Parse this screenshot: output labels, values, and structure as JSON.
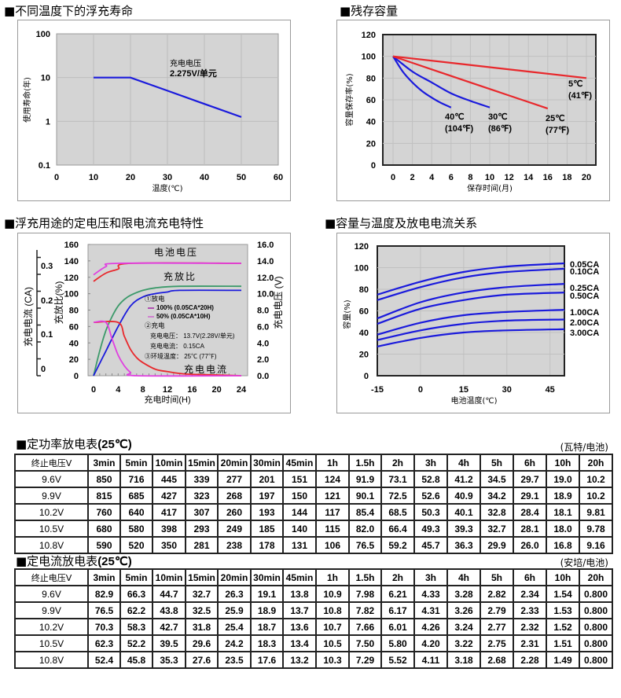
{
  "sections": {
    "float_life_title": "■不同温度下的浮充寿命",
    "residual_title": "■残存容量",
    "charge_title": "■浮充用途的定电压和限电流充电特性",
    "capacity_temp_title": "■容量与温度及放电电流关系",
    "cp_table_title": "■定功率放电表",
    "cp_table_temp": "(25℃)",
    "cc_table_title": "■定电流放电表",
    "cc_table_temp": "(25℃)"
  },
  "chart_data": [
    {
      "type": "line",
      "title": "不同温度下的浮充寿命",
      "xlabel": "温度(℃)",
      "ylabel": "使用寿命(年)",
      "xlim": [
        0,
        60
      ],
      "ylim": [
        0.1,
        100
      ],
      "yscale": "log",
      "xticks": [
        "0",
        "10",
        "20",
        "30",
        "40",
        "50",
        "60"
      ],
      "yticks": [
        "0.1",
        "1",
        "10",
        "100"
      ],
      "grid": true,
      "annotation": [
        "充电电压",
        "2.275V/单元"
      ],
      "series": [
        {
          "name": "2.275V/单元",
          "color": "#1a1adc",
          "x": [
            10,
            20,
            30,
            40,
            50
          ],
          "y": [
            10,
            10,
            5,
            2.5,
            1.25
          ]
        }
      ]
    },
    {
      "type": "line",
      "title": "残存容量",
      "xlabel": "保存时间(月)",
      "ylabel": "容量保存率(%)",
      "xlim": [
        0,
        21
      ],
      "ylim": [
        0,
        120
      ],
      "xticks": [
        "0",
        "2",
        "4",
        "6",
        "8",
        "10",
        "12",
        "14",
        "16",
        "18",
        "20"
      ],
      "yticks": [
        "0",
        "20",
        "40",
        "60",
        "80",
        "100",
        "120"
      ],
      "grid": true,
      "series": [
        {
          "name": "40℃ (104℉)",
          "label1": "40℃",
          "label2": "(104℉)",
          "color": "#1a1adc",
          "x": [
            0,
            1,
            2,
            3,
            4,
            5,
            6
          ],
          "y": [
            100,
            86,
            76,
            68,
            62,
            57,
            53
          ]
        },
        {
          "name": "30℃ (86℉)",
          "label1": "30℃",
          "label2": "(86℉)",
          "color": "#1a1adc",
          "x": [
            0,
            2,
            4,
            6,
            8,
            10
          ],
          "y": [
            100,
            86,
            76,
            66,
            59,
            53
          ]
        },
        {
          "name": "25℃ (77℉)",
          "label1": "25℃",
          "label2": "(77℉)",
          "color": "#e8282c",
          "x": [
            0,
            4,
            8,
            12,
            16
          ],
          "y": [
            100,
            88,
            76,
            64,
            52
          ]
        },
        {
          "name": "5℃ (41℉)",
          "label1": "5℃",
          "label2": "(41℉)",
          "color": "#e8282c",
          "x": [
            0,
            10,
            20
          ],
          "y": [
            100,
            90,
            80
          ]
        }
      ]
    },
    {
      "type": "line",
      "title": "浮充用途的定电压和限电流充电特性",
      "xlabel": "充电时间(H)",
      "ylabel_left_outer": "充电电流 (CA)",
      "ylabel_left": "充放比(%)",
      "ylabel_right": "充电电压 (V)",
      "xlim": [
        -1,
        25
      ],
      "ylim": [
        0,
        160
      ],
      "xticks": [
        "0",
        "4",
        "8",
        "12",
        "16",
        "20",
        "24"
      ],
      "yticks": [
        "0",
        "20",
        "40",
        "60",
        "80",
        "100",
        "120",
        "140",
        "160"
      ],
      "yticks_right": [
        "0.0",
        "2.0",
        "4.0",
        "6.0",
        "8.0",
        "10.0",
        "12.0",
        "14.0",
        "16.0"
      ],
      "yticks_current": [
        "0",
        "0.1",
        "0.2",
        "0.3"
      ],
      "grid": true,
      "curve_labels": {
        "voltage": "电池电压",
        "ratio": "充放比",
        "current": "充电电流"
      },
      "legend": {
        "discharge": "①放电",
        "item_100": "100% (0.05CA*20H)",
        "item_50": "50% (0.05CA*10H)",
        "charge": "②充电",
        "charge_voltage": "充电电压： 13.7V(2.28V/单元)",
        "charge_current": "充电电流： 0.15CA",
        "ambient": "③环境温度： 25℃ (77℉)"
      },
      "series": [
        {
          "name": "电池电压 100%",
          "color": "#e8282c",
          "x": [
            0,
            2,
            4,
            6,
            24
          ],
          "y": [
            115,
            125,
            130,
            137,
            137
          ]
        },
        {
          "name": "电池电压 50%",
          "color": "#e040e0",
          "x": [
            0,
            2,
            4,
            24
          ],
          "y": [
            123,
            133,
            137,
            137
          ]
        },
        {
          "name": "充放比 50%",
          "color": "#3c9a6a",
          "x": [
            0,
            1,
            2,
            3,
            4,
            5,
            6,
            8,
            10,
            14,
            24
          ],
          "y": [
            0,
            30,
            55,
            72,
            85,
            93,
            98,
            104,
            107,
            109,
            109
          ]
        },
        {
          "name": "充放比 100%",
          "color": "#1a1adc",
          "x": [
            0,
            2,
            4,
            6,
            8,
            10,
            12,
            14,
            24
          ],
          "y": [
            0,
            30,
            60,
            85,
            96,
            100,
            102,
            104,
            104
          ]
        },
        {
          "name": "充电电流 100%",
          "color": "#e8282c",
          "x": [
            0,
            4,
            5,
            6,
            7,
            8,
            10,
            12,
            15,
            20,
            24
          ],
          "y": [
            65,
            65,
            48,
            32,
            22,
            16,
            8,
            5,
            2,
            1,
            0
          ]
        },
        {
          "name": "充电电流 50%",
          "color": "#e040e0",
          "x": [
            0,
            2,
            3,
            4,
            5,
            6,
            7,
            24
          ],
          "y": [
            65,
            65,
            45,
            25,
            12,
            4,
            0,
            0
          ]
        }
      ]
    },
    {
      "type": "line",
      "title": "容量与温度及放电电流关系",
      "xlabel": "电池温度(℃)",
      "ylabel": "容量(%)",
      "xlim": [
        -15,
        50
      ],
      "ylim": [
        0,
        120
      ],
      "xticks": [
        "-15",
        "0",
        "15",
        "30",
        "45"
      ],
      "yticks": [
        "0",
        "20",
        "40",
        "60",
        "80",
        "100",
        "120"
      ],
      "grid": true,
      "series": [
        {
          "name": "0.05CA",
          "color": "#1a1adc",
          "x": [
            -15,
            0,
            15,
            30,
            50
          ],
          "y": [
            75,
            87,
            96,
            101,
            104
          ]
        },
        {
          "name": "0.10CA",
          "color": "#1a1adc",
          "x": [
            -15,
            0,
            15,
            30,
            50
          ],
          "y": [
            70,
            82,
            91,
            96,
            99
          ]
        },
        {
          "name": "0.25CA",
          "color": "#1a1adc",
          "x": [
            -15,
            0,
            15,
            30,
            50
          ],
          "y": [
            53,
            68,
            77,
            82,
            85
          ]
        },
        {
          "name": "0.50CA",
          "color": "#1a1adc",
          "x": [
            -15,
            0,
            15,
            30,
            50
          ],
          "y": [
            48,
            62,
            70,
            75,
            77
          ]
        },
        {
          "name": "1.00CA",
          "color": "#1a1adc",
          "x": [
            -15,
            0,
            15,
            30,
            50
          ],
          "y": [
            38,
            49,
            56,
            59,
            61
          ]
        },
        {
          "name": "2.00CA",
          "color": "#1a1adc",
          "x": [
            -15,
            0,
            15,
            30,
            50
          ],
          "y": [
            33,
            42,
            48,
            51,
            52
          ]
        },
        {
          "name": "3.00CA",
          "color": "#1a1adc",
          "x": [
            -15,
            0,
            15,
            30,
            50
          ],
          "y": [
            27,
            35,
            40,
            42,
            43
          ]
        }
      ]
    }
  ],
  "tables": {
    "power": {
      "unit": "(瓦特/电池)",
      "header": [
        "终止电压V",
        "3min",
        "5min",
        "10min",
        "15min",
        "20min",
        "30min",
        "45min",
        "1h",
        "1.5h",
        "2h",
        "3h",
        "4h",
        "5h",
        "6h",
        "10h",
        "20h"
      ],
      "rows": [
        [
          "9.6V",
          "850",
          "716",
          "445",
          "339",
          "277",
          "201",
          "151",
          "124",
          "91.9",
          "73.1",
          "52.8",
          "41.2",
          "34.5",
          "29.7",
          "19.0",
          "10.2"
        ],
        [
          "9.9V",
          "815",
          "685",
          "427",
          "323",
          "268",
          "197",
          "150",
          "121",
          "90.1",
          "72.5",
          "52.6",
          "40.9",
          "34.2",
          "29.1",
          "18.9",
          "10.2"
        ],
        [
          "10.2V",
          "760",
          "640",
          "417",
          "307",
          "260",
          "193",
          "144",
          "117",
          "85.4",
          "68.5",
          "50.3",
          "40.1",
          "32.8",
          "28.4",
          "18.1",
          "9.81"
        ],
        [
          "10.5V",
          "680",
          "580",
          "398",
          "293",
          "249",
          "185",
          "140",
          "115",
          "82.0",
          "66.4",
          "49.3",
          "39.3",
          "32.7",
          "28.1",
          "18.0",
          "9.78"
        ],
        [
          "10.8V",
          "590",
          "520",
          "350",
          "281",
          "238",
          "178",
          "131",
          "106",
          "76.5",
          "59.2",
          "45.7",
          "36.3",
          "29.9",
          "26.0",
          "16.8",
          "9.16"
        ]
      ]
    },
    "current": {
      "unit": "(安培/电池)",
      "header": [
        "终止电压V",
        "3min",
        "5min",
        "10min",
        "15min",
        "20min",
        "30min",
        "45min",
        "1h",
        "1.5h",
        "2h",
        "3h",
        "4h",
        "5h",
        "6h",
        "10h",
        "20h"
      ],
      "rows": [
        [
          "9.6V",
          "82.9",
          "66.3",
          "44.7",
          "32.7",
          "26.3",
          "19.1",
          "13.8",
          "10.9",
          "7.98",
          "6.21",
          "4.33",
          "3.28",
          "2.82",
          "2.34",
          "1.54",
          "0.800"
        ],
        [
          "9.9V",
          "76.5",
          "62.2",
          "43.8",
          "32.5",
          "25.9",
          "18.9",
          "13.7",
          "10.8",
          "7.82",
          "6.17",
          "4.31",
          "3.26",
          "2.79",
          "2.33",
          "1.53",
          "0.800"
        ],
        [
          "10.2V",
          "70.3",
          "58.3",
          "42.7",
          "31.8",
          "25.4",
          "18.7",
          "13.6",
          "10.7",
          "7.66",
          "6.01",
          "4.26",
          "3.24",
          "2.77",
          "2.32",
          "1.52",
          "0.800"
        ],
        [
          "10.5V",
          "62.3",
          "52.2",
          "39.5",
          "29.6",
          "24.2",
          "18.3",
          "13.4",
          "10.5",
          "7.50",
          "5.80",
          "4.20",
          "3.22",
          "2.75",
          "2.31",
          "1.51",
          "0.800"
        ],
        [
          "10.8V",
          "52.4",
          "45.8",
          "35.3",
          "27.6",
          "23.5",
          "17.6",
          "13.2",
          "10.3",
          "7.29",
          "5.52",
          "4.11",
          "3.18",
          "2.68",
          "2.28",
          "1.49",
          "0.800"
        ]
      ]
    }
  }
}
